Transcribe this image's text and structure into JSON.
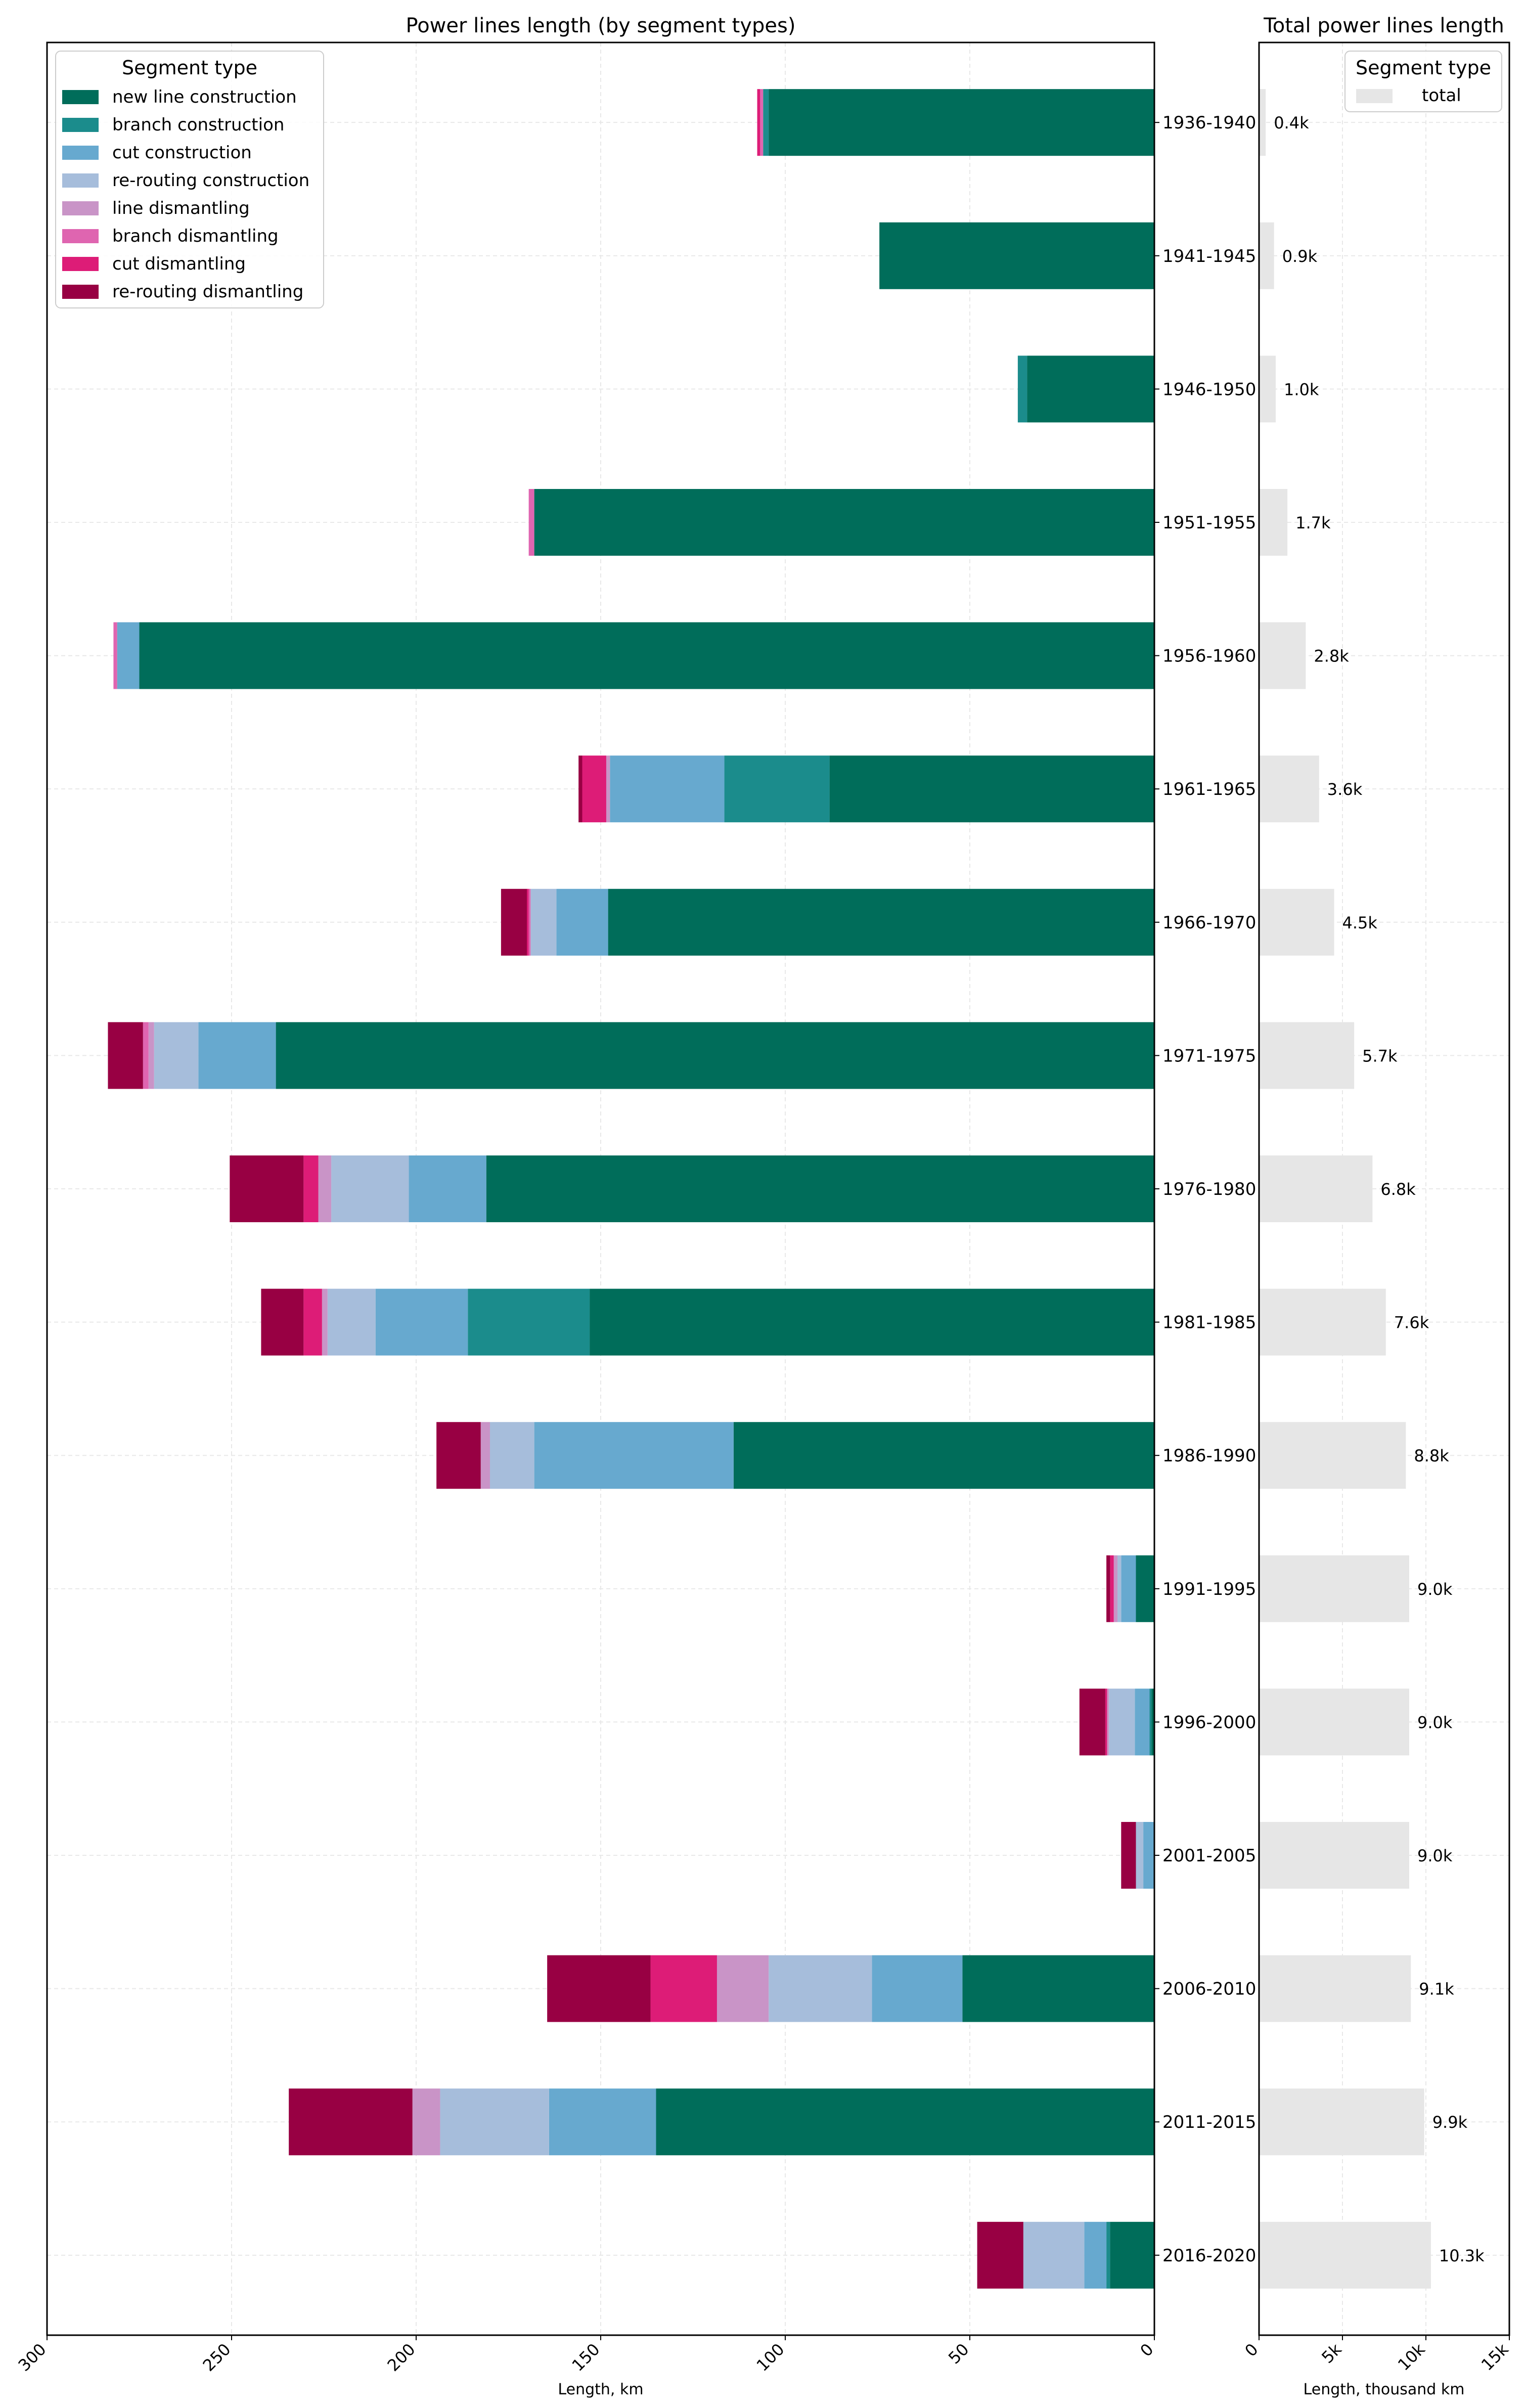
{
  "chart_data": [
    {
      "type": "bar",
      "orientation": "horizontal-stacked",
      "title": "Power lines length (by segment types)",
      "xlabel": "Length, km",
      "ylabel": "",
      "xlim": [
        300,
        0
      ],
      "x_inverted": true,
      "x_ticks": [
        300,
        250,
        200,
        150,
        100,
        50,
        0
      ],
      "grid": true,
      "categories": [
        "1936-1940",
        "1941-1945",
        "1946-1950",
        "1951-1955",
        "1956-1960",
        "1961-1965",
        "1966-1970",
        "1971-1975",
        "1976-1980",
        "1981-1985",
        "1986-1990",
        "1991-1995",
        "1996-2000",
        "2001-2005",
        "2006-2010",
        "2011-2015",
        "2016-2020"
      ],
      "legend": {
        "title": "Segment type",
        "placement": "top-left"
      },
      "series": [
        {
          "name": "new line construction",
          "color": "#006d5a",
          "values": [
            104.5,
            74.5,
            34.5,
            168,
            275,
            88,
            148,
            238,
            181,
            153,
            114,
            5,
            0.8,
            0,
            52,
            135,
            12
          ]
        },
        {
          "name": "branch construction",
          "color": "#1b8c8c",
          "values": [
            1.5,
            0,
            2.5,
            0,
            0,
            28.5,
            0,
            0,
            0,
            33,
            0,
            0,
            0.5,
            0,
            0,
            0,
            1
          ]
        },
        {
          "name": "cut construction",
          "color": "#67a9cf",
          "values": [
            0,
            0,
            0,
            0,
            6,
            31,
            14,
            21,
            21,
            25,
            54,
            4,
            4,
            3,
            24.5,
            29,
            6
          ]
        },
        {
          "name": "re-routing construction",
          "color": "#a6bddb",
          "values": [
            0,
            0,
            0,
            0,
            0,
            0,
            7,
            12,
            21,
            13,
            12,
            1,
            7,
            2,
            28,
            29.5,
            16.5
          ]
        },
        {
          "name": "line dismantling",
          "color": "#c994c7",
          "values": [
            0,
            0,
            0,
            0,
            0,
            1,
            0,
            1.5,
            3.5,
            1.5,
            2.5,
            1,
            0.5,
            0,
            14,
            7.5,
            0
          ]
        },
        {
          "name": "branch dismantling",
          "color": "#df65b0",
          "values": [
            0.8,
            0,
            0,
            1.5,
            1,
            0,
            0.5,
            1.5,
            0,
            0,
            0,
            0,
            0,
            0,
            0,
            0,
            0
          ]
        },
        {
          "name": "cut dismantling",
          "color": "#dd1c77",
          "values": [
            0.8,
            0,
            0,
            0,
            0,
            6.5,
            0.5,
            0,
            4,
            5,
            0,
            1,
            0.5,
            0,
            18,
            0,
            0
          ]
        },
        {
          "name": "re-routing dismantling",
          "color": "#980043",
          "values": [
            0,
            0,
            0,
            0,
            0,
            1,
            7,
            9.5,
            20,
            11.5,
            12,
            1,
            7,
            4,
            28,
            33.5,
            12.5
          ]
        }
      ]
    },
    {
      "type": "bar",
      "orientation": "horizontal",
      "title": "Total power lines length",
      "xlabel": "Length, thousand km",
      "xlim": [
        0,
        15
      ],
      "x_ticks": [
        0,
        5,
        10,
        15
      ],
      "x_tick_labels": [
        "0",
        "5k",
        "10k",
        "15k"
      ],
      "grid": true,
      "legend": {
        "title": "Segment type",
        "placement": "top-right"
      },
      "series": [
        {
          "name": "total",
          "color": "#e6e6e6",
          "values": [
            0.4,
            0.9,
            1.0,
            1.7,
            2.8,
            3.6,
            4.5,
            5.7,
            6.8,
            7.6,
            8.8,
            9.0,
            9.0,
            9.0,
            9.1,
            9.9,
            10.3
          ],
          "data_labels": [
            "0.4k",
            "0.9k",
            "1.0k",
            "1.7k",
            "2.8k",
            "3.6k",
            "4.5k",
            "5.7k",
            "6.8k",
            "7.6k",
            "8.8k",
            "9.0k",
            "9.0k",
            "9.0k",
            "9.1k",
            "9.9k",
            "10.3k"
          ]
        }
      ]
    }
  ]
}
